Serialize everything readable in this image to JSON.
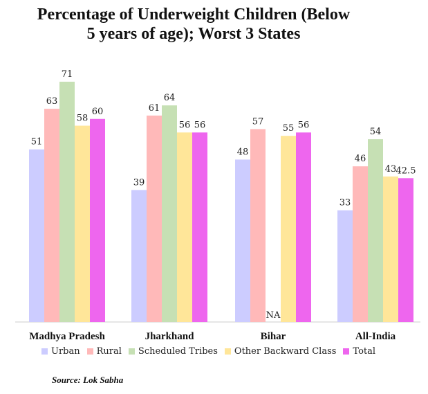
{
  "chart_data": {
    "type": "bar",
    "title_lines": [
      "Percentage of Underweight Children (Below",
      "5 years of age); Worst 3 States"
    ],
    "categories": [
      "Madhya Pradesh",
      "Jharkhand",
      "Bihar",
      "All-India"
    ],
    "series": [
      {
        "name": "Urban",
        "color": "#ccccff",
        "values": [
          51,
          39,
          48,
          33
        ],
        "labels": [
          "51",
          "39",
          "48",
          "33"
        ]
      },
      {
        "name": "Rural",
        "color": "#ffb9b9",
        "values": [
          63,
          61,
          57,
          46
        ],
        "labels": [
          "63",
          "61",
          "57",
          "46"
        ]
      },
      {
        "name": "Scheduled Tribes",
        "color": "#c6e0b4",
        "values": [
          71,
          64,
          null,
          54
        ],
        "labels": [
          "71",
          "64",
          "NA",
          "54"
        ]
      },
      {
        "name": "Other Backward Class",
        "color": "#ffe699",
        "values": [
          58,
          56,
          55,
          43
        ],
        "labels": [
          "58",
          "56",
          "55",
          "43"
        ]
      },
      {
        "name": "Total",
        "color": "#ee66ee",
        "values": [
          60,
          56,
          56,
          42.5
        ],
        "labels": [
          "60",
          "56",
          "56",
          "42.5"
        ]
      }
    ],
    "ylim": [
      0,
      72
    ],
    "grid": false,
    "legend_position": "bottom",
    "source": "Source: Lok Sabha"
  }
}
